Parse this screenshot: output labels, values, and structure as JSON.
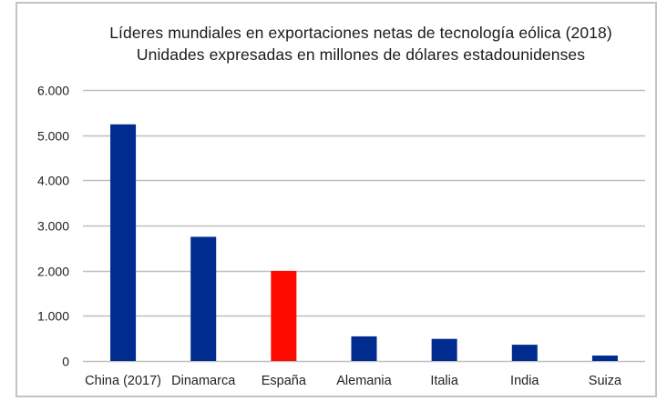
{
  "chart_data": {
    "type": "bar",
    "title": "Líderes mundiales en exportaciones netas de tecnología eólica (2018)",
    "subtitle": "Unidades expresadas en millones de dólares estadounidenses",
    "xlabel": "",
    "ylabel": "",
    "categories": [
      "China (2017)",
      "Dinamarca",
      "España",
      "Alemania",
      "Italia",
      "India",
      "Suiza"
    ],
    "values": [
      5240,
      2750,
      1995,
      545,
      490,
      360,
      120
    ],
    "colors": [
      "#002b8f",
      "#002b8f",
      "#ff0a00",
      "#002b8f",
      "#002b8f",
      "#002b8f",
      "#002b8f"
    ],
    "ylim": [
      0,
      6000
    ],
    "yticks": [
      0,
      1000,
      2000,
      3000,
      4000,
      5000,
      6000
    ],
    "ytick_labels": [
      "0",
      "1.000",
      "2.000",
      "3.000",
      "4.000",
      "5.000",
      "6.000"
    ],
    "grid": true,
    "legend": "none",
    "gridline_color": "#bfbfbf"
  }
}
